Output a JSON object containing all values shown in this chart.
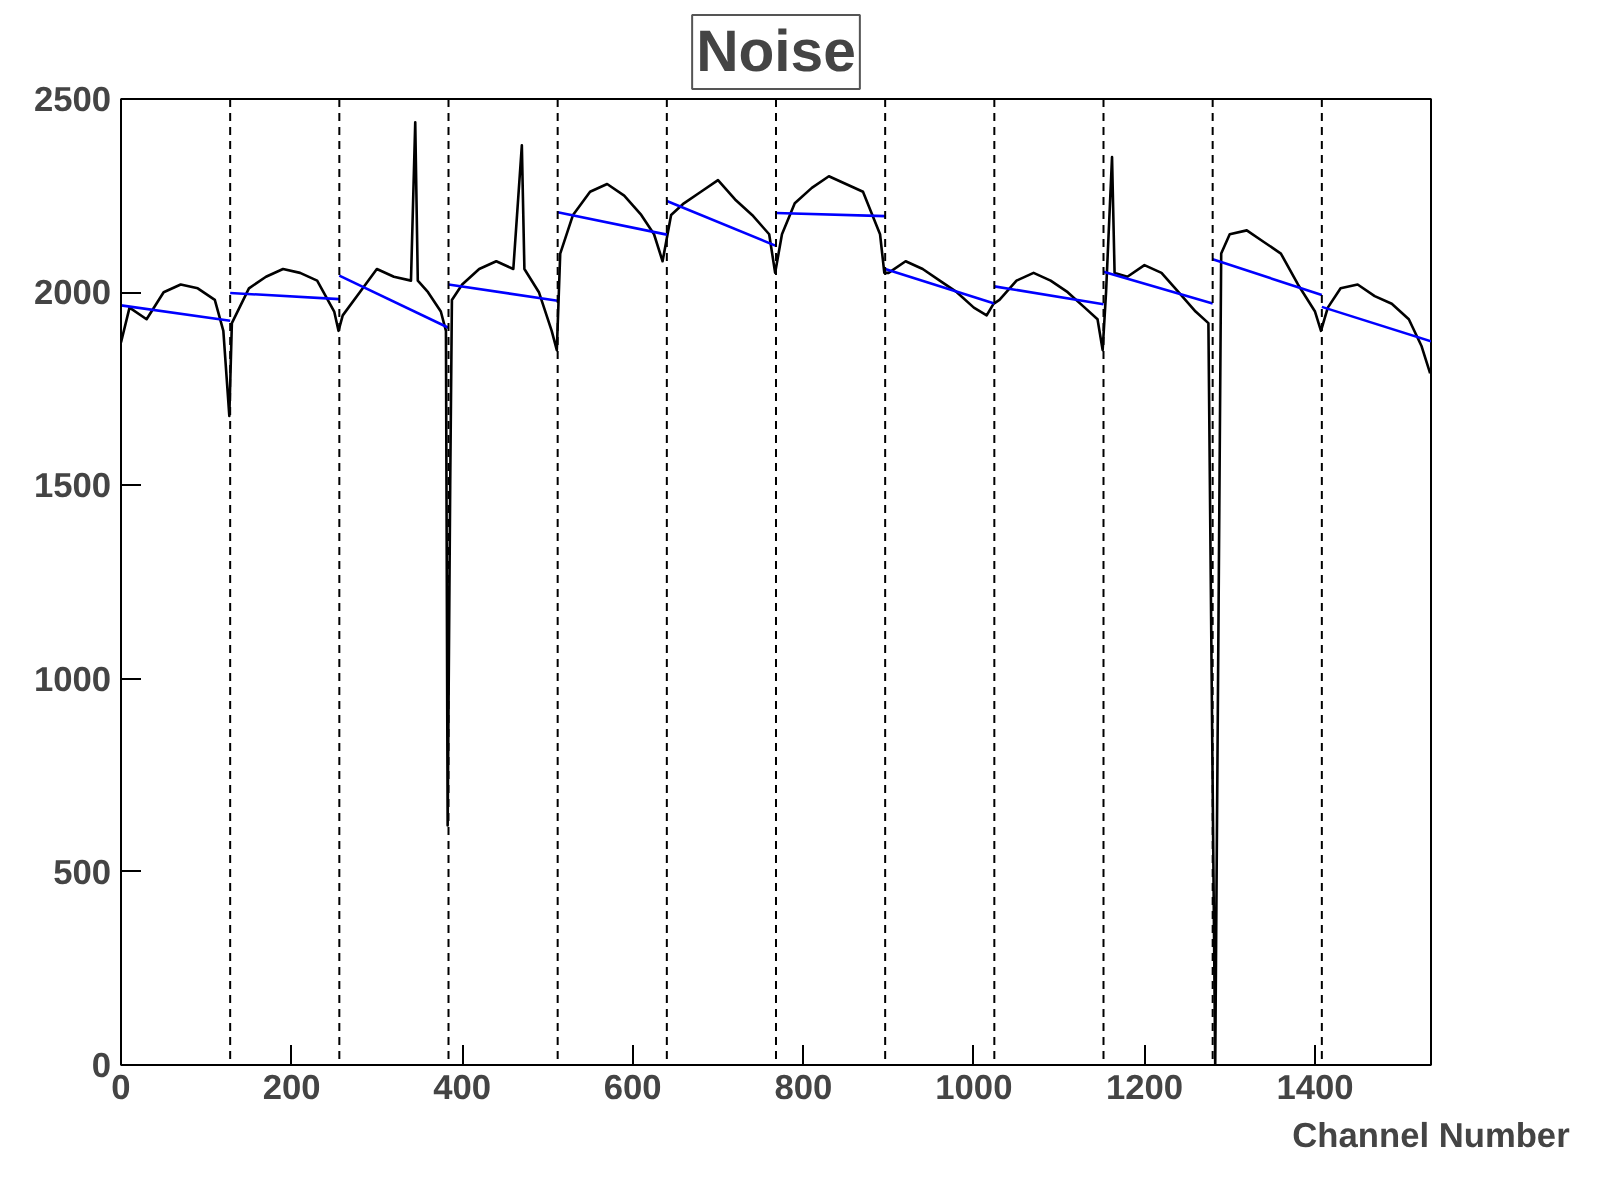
{
  "chart_data": {
    "type": "line",
    "title": "Noise",
    "xlabel": "Channel Number",
    "xlim": [
      0,
      1536
    ],
    "ylim": [
      0,
      2500
    ],
    "xticks": [
      0,
      200,
      400,
      600,
      800,
      1000,
      1200,
      1400
    ],
    "yticks": [
      0,
      500,
      1000,
      1500,
      2000,
      2500
    ],
    "grid": false,
    "series": [
      {
        "color": "#000000",
        "x": [
          0,
          10,
          30,
          50,
          70,
          90,
          110,
          120,
          127,
          130,
          150,
          170,
          190,
          210,
          230,
          250,
          255,
          260,
          280,
          300,
          320,
          340,
          345,
          348,
          360,
          375,
          381,
          383,
          386,
          388,
          400,
          420,
          440,
          460,
          470,
          473,
          490,
          505,
          511,
          515,
          530,
          550,
          570,
          590,
          610,
          625,
          635,
          645,
          660,
          680,
          700,
          720,
          740,
          760,
          767,
          775,
          790,
          810,
          830,
          850,
          870,
          890,
          895,
          900,
          920,
          940,
          960,
          980,
          1000,
          1015,
          1023,
          1030,
          1050,
          1070,
          1090,
          1110,
          1130,
          1145,
          1151,
          1155,
          1162,
          1165,
          1180,
          1200,
          1220,
          1240,
          1260,
          1275,
          1283,
          1290,
          1300,
          1320,
          1340,
          1360,
          1380,
          1400,
          1407,
          1415,
          1430,
          1450,
          1470,
          1490,
          1510,
          1525,
          1535
        ],
        "values": [
          1870,
          1960,
          1930,
          2000,
          2020,
          2010,
          1980,
          1900,
          1680,
          1920,
          2010,
          2040,
          2060,
          2050,
          2030,
          1950,
          1900,
          1940,
          2000,
          2060,
          2040,
          2030,
          2440,
          2030,
          2000,
          1950,
          1900,
          620,
          1500,
          1980,
          2020,
          2060,
          2080,
          2060,
          2380,
          2060,
          2000,
          1900,
          1850,
          2100,
          2200,
          2260,
          2280,
          2250,
          2200,
          2150,
          2080,
          2200,
          2230,
          2260,
          2290,
          2240,
          2200,
          2150,
          2050,
          2150,
          2230,
          2270,
          2300,
          2280,
          2260,
          2150,
          2050,
          2050,
          2080,
          2060,
          2030,
          2000,
          1960,
          1940,
          1970,
          1980,
          2030,
          2050,
          2030,
          2000,
          1960,
          1930,
          1850,
          2000,
          2350,
          2050,
          2040,
          2070,
          2050,
          2000,
          1950,
          1920,
          0,
          2100,
          2150,
          2160,
          2130,
          2100,
          2020,
          1950,
          1900,
          1960,
          2010,
          2020,
          1990,
          1970,
          1930,
          1860,
          1790
        ]
      },
      {
        "type": "line",
        "color": "#0000ff",
        "x": [
          0,
          128
        ],
        "values": [
          1966,
          1926
        ]
      },
      {
        "type": "line",
        "color": "#0000ff",
        "x": [
          128,
          256
        ],
        "values": [
          1998,
          1982
        ]
      },
      {
        "type": "line",
        "color": "#0000ff",
        "x": [
          256,
          384
        ],
        "values": [
          2043,
          1908
        ]
      },
      {
        "type": "line",
        "color": "#0000ff",
        "x": [
          384,
          512
        ],
        "values": [
          2020,
          1978
        ]
      },
      {
        "type": "line",
        "color": "#0000ff",
        "x": [
          512,
          640
        ],
        "values": [
          2207,
          2149
        ]
      },
      {
        "type": "line",
        "color": "#0000ff",
        "x": [
          640,
          768
        ],
        "values": [
          2236,
          2120
        ]
      },
      {
        "type": "line",
        "color": "#0000ff",
        "x": [
          768,
          896
        ],
        "values": [
          2205,
          2197
        ]
      },
      {
        "type": "line",
        "color": "#0000ff",
        "x": [
          896,
          1024
        ],
        "values": [
          2060,
          1971
        ]
      },
      {
        "type": "line",
        "color": "#0000ff",
        "x": [
          1024,
          1152
        ],
        "values": [
          2015,
          1969
        ]
      },
      {
        "type": "line",
        "color": "#0000ff",
        "x": [
          1152,
          1280
        ],
        "values": [
          2053,
          1971
        ]
      },
      {
        "type": "line",
        "color": "#0000ff",
        "x": [
          1280,
          1408
        ],
        "values": [
          2085,
          1993
        ]
      },
      {
        "type": "line",
        "color": "#0000ff",
        "x": [
          1408,
          1536
        ],
        "values": [
          1962,
          1873
        ]
      }
    ],
    "ref_lines": [
      {
        "axis": "x",
        "value": 128,
        "line_style": "dashed"
      },
      {
        "axis": "x",
        "value": 256,
        "line_style": "dashed"
      },
      {
        "axis": "x",
        "value": 384,
        "line_style": "dashed"
      },
      {
        "axis": "x",
        "value": 512,
        "line_style": "dashed"
      },
      {
        "axis": "x",
        "value": 640,
        "line_style": "dashed"
      },
      {
        "axis": "x",
        "value": 768,
        "line_style": "dashed"
      },
      {
        "axis": "x",
        "value": 896,
        "line_style": "dashed"
      },
      {
        "axis": "x",
        "value": 1024,
        "line_style": "dashed"
      },
      {
        "axis": "x",
        "value": 1152,
        "line_style": "dashed"
      },
      {
        "axis": "x",
        "value": 1280,
        "line_style": "dashed"
      },
      {
        "axis": "x",
        "value": 1408,
        "line_style": "dashed"
      }
    ]
  }
}
